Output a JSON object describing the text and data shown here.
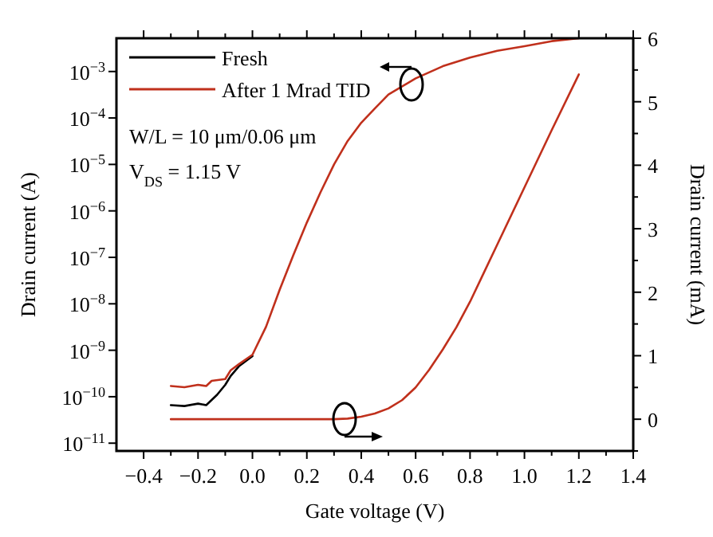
{
  "chart_data": {
    "type": "line",
    "xlabel": "Gate voltage (V)",
    "ylabel": "Drain current (A)",
    "y2label": "Drain current (mA)",
    "log": "y",
    "xlim": [
      -0.5,
      1.4
    ],
    "ylim": [
      6.8e-12,
      0.0052
    ],
    "y2lim": [
      -0.5,
      6
    ],
    "xticks": [
      {
        "value": -0.4,
        "label": "−0.4"
      },
      {
        "value": -0.3,
        "label": null
      },
      {
        "value": -0.2,
        "label": "−0.2"
      },
      {
        "value": -0.1,
        "label": null
      },
      {
        "value": 0,
        "label": "0.0"
      },
      {
        "value": 0.1,
        "label": null
      },
      {
        "value": 0.2,
        "label": "0.2"
      },
      {
        "value": 0.3,
        "label": null
      },
      {
        "value": 0.4,
        "label": "0.4"
      },
      {
        "value": 0.5,
        "label": null
      },
      {
        "value": 0.6,
        "label": "0.6"
      },
      {
        "value": 0.7,
        "label": null
      },
      {
        "value": 0.8,
        "label": "0.8"
      },
      {
        "value": 0.9,
        "label": null
      },
      {
        "value": 1.0,
        "label": "1.0"
      },
      {
        "value": 1.1,
        "label": null
      },
      {
        "value": 1.2,
        "label": "1.2"
      },
      {
        "value": 1.3,
        "label": null
      },
      {
        "value": 1.4,
        "label": "1.4"
      }
    ],
    "yticks": [
      {
        "value": 1e-11,
        "label": "10$^{−11}$"
      },
      {
        "value": 1e-10,
        "label": "10$^{−10}$"
      },
      {
        "value": 1e-09,
        "label": "10$^{−9}$"
      },
      {
        "value": 1e-08,
        "label": "10$^{−8}$"
      },
      {
        "value": 1e-07,
        "label": "10$^{−7}$"
      },
      {
        "value": 1e-06,
        "label": "10$^{−6}$"
      },
      {
        "value": 1e-05,
        "label": "10$^{−5}$"
      },
      {
        "value": 0.0001,
        "label": "10$^{−4}$"
      },
      {
        "value": 0.001,
        "label": "10$^{−3}$"
      }
    ],
    "y2ticks": [
      {
        "value": -0.5,
        "label": null
      },
      0,
      {
        "value": 0.5,
        "label": null
      },
      1,
      {
        "value": 1.5,
        "label": null
      },
      2,
      {
        "value": 2.5,
        "label": null
      },
      3,
      {
        "value": 3.5,
        "label": null
      },
      4,
      {
        "value": 4.5,
        "label": null
      },
      5,
      {
        "value": 5.5,
        "label": null
      },
      6
    ],
    "legend": "top left",
    "annotations": [
      "W/L = 10 μm/0.06 μm",
      "V$_{DS}$ = 1.15 V"
    ],
    "series": [
      {
        "name": "Fresh",
        "color": "#000000",
        "x": [
          -0.3,
          -0.25,
          -0.2,
          -0.17,
          -0.13,
          -0.1,
          -0.08,
          -0.05,
          0.0
        ],
        "values": [
          6.6e-11,
          6.3e-11,
          7.1e-11,
          6.6e-11,
          1.1e-10,
          1.8e-10,
          2.8e-10,
          4.5e-10,
          7.5e-10
        ]
      },
      {
        "name": "After 1 Mrad TID",
        "color": "#c0301c",
        "x": [
          -0.3,
          -0.25,
          -0.2,
          -0.17,
          -0.15,
          -0.1,
          -0.08,
          -0.05,
          0.0,
          0.05,
          0.1,
          0.15,
          0.2,
          0.25,
          0.3,
          0.35,
          0.4,
          0.45,
          0.5,
          0.6,
          0.7,
          0.8,
          0.9,
          1.0,
          1.1,
          1.2
        ],
        "values": [
          1.7e-10,
          1.6e-10,
          1.8e-10,
          1.7e-10,
          2.2e-10,
          2.4e-10,
          3.7e-10,
          5e-10,
          8e-10,
          3.2e-09,
          2e-08,
          1.1e-07,
          5.6e-07,
          2.5e-06,
          1e-05,
          3.2e-05,
          7.9e-05,
          0.00016,
          0.00032,
          0.00071,
          0.0013,
          0.002,
          0.0028,
          0.0035,
          0.0045,
          0.0052
        ]
      },
      {
        "color": "#c0301c",
        "axis": "y2",
        "x": [
          -0.3,
          0.0,
          0.3,
          0.35,
          0.4,
          0.45,
          0.5,
          0.55,
          0.6,
          0.65,
          0.7,
          0.75,
          0.8,
          0.85,
          0.9,
          1.0,
          1.1,
          1.2
        ],
        "values": [
          0,
          0,
          0,
          0.01,
          0.04,
          0.09,
          0.17,
          0.3,
          0.5,
          0.78,
          1.1,
          1.45,
          1.85,
          2.3,
          2.75,
          3.65,
          4.55,
          5.43
        ]
      }
    ]
  }
}
